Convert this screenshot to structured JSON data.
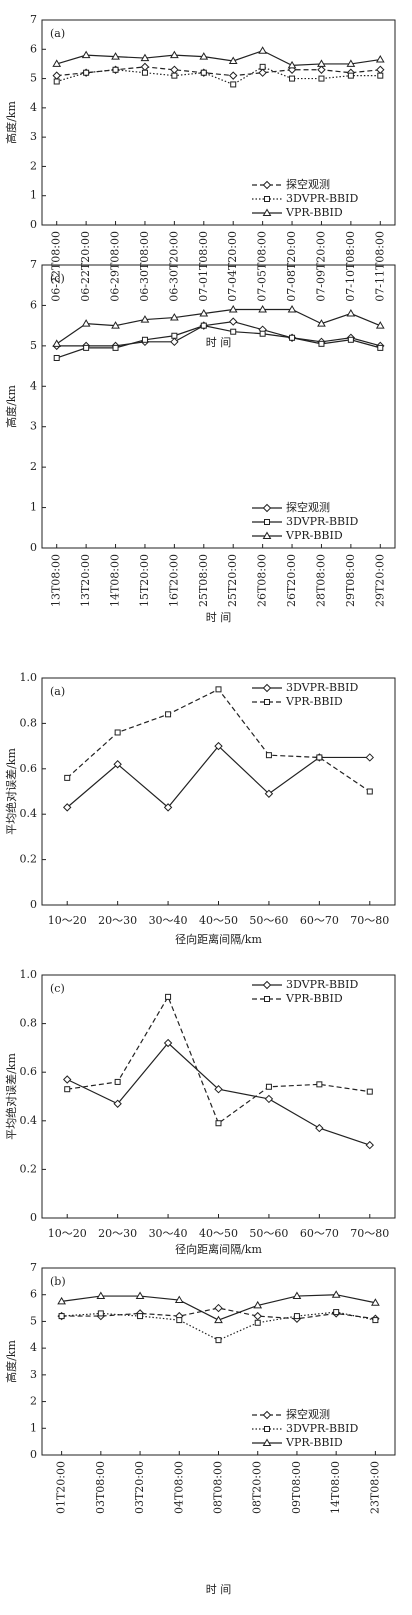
{
  "chart_data": [
    {
      "type": "line",
      "panel": "(a)",
      "y_label": "高度/km",
      "x_label": "时 间",
      "categories": [
        "06-22T08:00",
        "06-22T20:00",
        "06-29T08:00",
        "06-30T08:00",
        "06-30T20:00",
        "07-01T08:00",
        "07-04T20:00",
        "07-05T08:00",
        "07-08T20:00",
        "07-09T20:00",
        "07-10T08:00",
        "07-11T08:00"
      ],
      "series": [
        {
          "name": "探空观测",
          "color": "#222222",
          "dash": "dashed",
          "marker": "diamond",
          "values": [
            5.1,
            5.2,
            5.3,
            5.4,
            5.3,
            5.2,
            5.1,
            5.2,
            5.3,
            5.3,
            5.2,
            5.3
          ]
        },
        {
          "name": "3DVPR-BBID",
          "color": "#222222",
          "dash": "dotted",
          "marker": "square",
          "values": [
            4.9,
            5.2,
            5.3,
            5.2,
            5.1,
            5.2,
            4.8,
            5.4,
            5.0,
            5.0,
            5.1,
            5.1
          ]
        },
        {
          "name": "VPR-BBID",
          "color": "#222222",
          "dash": "solid",
          "marker": "triangle",
          "values": [
            5.5,
            5.8,
            5.75,
            5.7,
            5.8,
            5.75,
            5.6,
            5.95,
            5.45,
            5.5,
            5.5,
            5.65
          ]
        }
      ],
      "ylim": [
        0,
        7
      ],
      "yticks": [
        0,
        1,
        2,
        3,
        4,
        5,
        6,
        7
      ],
      "legend": "lower right"
    },
    {
      "type": "line",
      "panel": "(c)",
      "y_label": "高度/km",
      "x_label": "时 间",
      "categories": [
        "13T08:00",
        "13T20:00",
        "14T08:00",
        "15T20:00",
        "16T20:00",
        "25T08:00",
        "25T20:00",
        "26T08:00",
        "26T20:00",
        "28T08:00",
        "29T08:00",
        "29T20:00"
      ],
      "series": [
        {
          "name": "探空观测",
          "color": "#222222",
          "dash": "solid",
          "marker": "diamond",
          "values": [
            5.0,
            5.0,
            5.0,
            5.1,
            5.1,
            5.5,
            5.6,
            5.4,
            5.2,
            5.1,
            5.2,
            5.0
          ]
        },
        {
          "name": "3DVPR-BBID",
          "color": "#222222",
          "dash": "solid",
          "marker": "square",
          "values": [
            4.7,
            4.95,
            4.95,
            5.15,
            5.25,
            5.5,
            5.35,
            5.3,
            5.2,
            5.05,
            5.15,
            4.95
          ]
        },
        {
          "name": "VPR-BBID",
          "color": "#222222",
          "dash": "solid",
          "marker": "triangle",
          "values": [
            5.05,
            5.55,
            5.5,
            5.65,
            5.7,
            5.8,
            5.9,
            5.9,
            5.9,
            5.55,
            5.8,
            5.5
          ]
        }
      ],
      "ylim": [
        0,
        7
      ],
      "yticks": [
        0,
        1,
        2,
        3,
        4,
        5,
        6,
        7
      ],
      "legend": "lower right"
    },
    {
      "type": "line",
      "panel": "(a)",
      "y_label": "平均绝对误差/km",
      "x_label": "径向距离间隔/km",
      "categories": [
        "10～20",
        "20～30",
        "30～40",
        "40～50",
        "50～60",
        "60～70",
        "70～80"
      ],
      "series": [
        {
          "name": "3DVPR-BBID",
          "color": "#222222",
          "dash": "solid",
          "marker": "diamond",
          "values": [
            0.43,
            0.62,
            0.43,
            0.7,
            0.49,
            0.65,
            0.65
          ]
        },
        {
          "name": "VPR-BBID",
          "color": "#222222",
          "dash": "dashed",
          "marker": "square",
          "values": [
            0.56,
            0.76,
            0.84,
            0.95,
            0.66,
            0.65,
            0.5
          ]
        }
      ],
      "ylim": [
        0,
        1
      ],
      "yticks": [
        0,
        0.2,
        0.4,
        0.6,
        0.8,
        {
          "value": 1,
          "label": "1.0"
        }
      ],
      "legend": "upper right"
    },
    {
      "type": "line",
      "panel": "(c)",
      "y_label": "平均绝对误差/km",
      "x_label": "径向距离间隔/km",
      "categories": [
        "10～20",
        "20～30",
        "30～40",
        "40～50",
        "50～60",
        "60～70",
        "70～80"
      ],
      "series": [
        {
          "name": "3DVPR-BBID",
          "color": "#222222",
          "dash": "solid",
          "marker": "diamond",
          "values": [
            0.57,
            0.47,
            0.72,
            0.53,
            0.49,
            0.37,
            0.3
          ]
        },
        {
          "name": "VPR-BBID",
          "color": "#222222",
          "dash": "dashed",
          "marker": "square",
          "values": [
            0.53,
            0.56,
            0.91,
            0.39,
            0.54,
            0.55,
            0.52
          ]
        }
      ],
      "ylim": [
        0,
        1
      ],
      "yticks": [
        0,
        0.2,
        0.4,
        0.6,
        0.8,
        {
          "value": 1,
          "label": "1.0"
        }
      ],
      "legend": "upper right"
    },
    {
      "type": "line",
      "panel": "(b)",
      "y_label": "高度/km",
      "x_label": "时 间",
      "categories": [
        "01T20:00",
        "03T08:00",
        "03T20:00",
        "04T08:00",
        "08T08:00",
        "08T20:00",
        "09T08:00",
        "14T08:00",
        "23T08:00"
      ],
      "series": [
        {
          "name": "探空观测",
          "color": "#222222",
          "dash": "dashed",
          "marker": "diamond",
          "values": [
            5.2,
            5.2,
            5.3,
            5.2,
            5.5,
            5.2,
            5.1,
            5.3,
            5.1
          ]
        },
        {
          "name": "3DVPR-BBID",
          "color": "#222222",
          "dash": "dotted",
          "marker": "square",
          "values": [
            5.2,
            5.3,
            5.2,
            5.05,
            4.3,
            4.95,
            5.2,
            5.35,
            5.05
          ]
        },
        {
          "name": "VPR-BBID",
          "color": "#222222",
          "dash": "solid",
          "marker": "triangle",
          "values": [
            5.75,
            5.95,
            5.95,
            5.8,
            5.05,
            5.6,
            5.95,
            6.0,
            5.7
          ]
        }
      ],
      "ylim": [
        0,
        7
      ],
      "yticks": [
        0,
        1,
        2,
        3,
        4,
        5,
        6,
        7
      ],
      "legend": "lower right"
    }
  ]
}
